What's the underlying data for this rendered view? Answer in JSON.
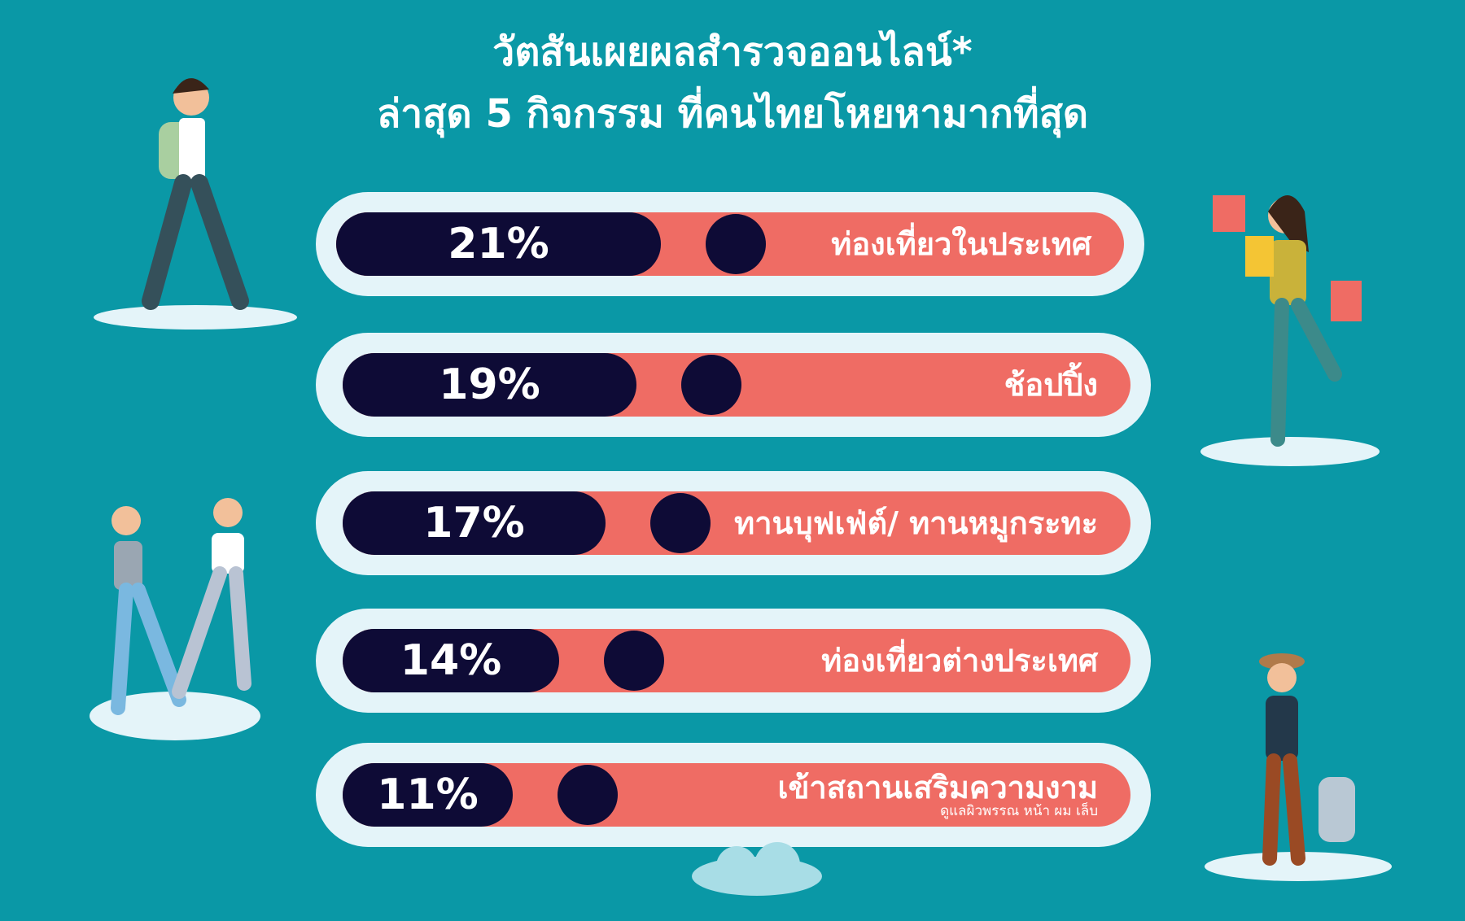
{
  "title_line1": "วัตสันเผยผลสำรวจออนไลน์*",
  "title_line2": "ล่าสุด 5 กิจกรรม ที่คนไทยโหยหามากที่สุด",
  "colors": {
    "background": "#0a98a6",
    "track": "#ef6c64",
    "fill": "#0e0b36",
    "pill": "#e4f4f9"
  },
  "chart_data": {
    "type": "bar",
    "orientation": "horizontal",
    "categories": [
      "ท่องเที่ยวในประเทศ",
      "ช้อปปิ้ง",
      "ทานบุฟเฟ่ต์/ ทานหมูกระทะ",
      "ท่องเที่ยวต่างประเทศ",
      "เข้าสถานเสริมความงาม"
    ],
    "sublabels": [
      "",
      "",
      "",
      "",
      "ดูแลผิวพรรณ หน้า ผม เล็บ"
    ],
    "values": [
      21,
      19,
      17,
      14,
      11
    ],
    "value_labels": [
      "21%",
      "19%",
      "17%",
      "14%",
      "11%"
    ],
    "unit": "%"
  }
}
